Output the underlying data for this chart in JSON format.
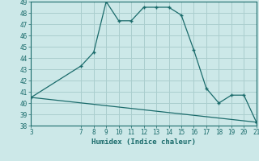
{
  "line1_x": [
    3,
    7,
    8,
    9,
    10,
    11,
    12,
    13,
    14,
    15,
    16,
    17,
    18,
    19,
    20,
    21
  ],
  "line1_y": [
    40.5,
    43.3,
    44.5,
    49.0,
    47.3,
    47.3,
    48.5,
    48.5,
    48.5,
    47.8,
    44.7,
    41.3,
    40.0,
    40.7,
    40.7,
    38.3
  ],
  "line2_x": [
    3,
    21
  ],
  "line2_y": [
    40.5,
    38.3
  ],
  "xlabel": "Humidex (Indice chaleur)",
  "xlim": [
    3,
    21
  ],
  "ylim": [
    38,
    49
  ],
  "yticks": [
    38,
    39,
    40,
    41,
    42,
    43,
    44,
    45,
    46,
    47,
    48,
    49
  ],
  "xticks": [
    3,
    7,
    8,
    9,
    10,
    11,
    12,
    13,
    14,
    15,
    16,
    17,
    18,
    19,
    20,
    21
  ],
  "line_color": "#1a6b6b",
  "bg_color": "#cce8e8",
  "grid_color": "#aacece",
  "marker": "+"
}
